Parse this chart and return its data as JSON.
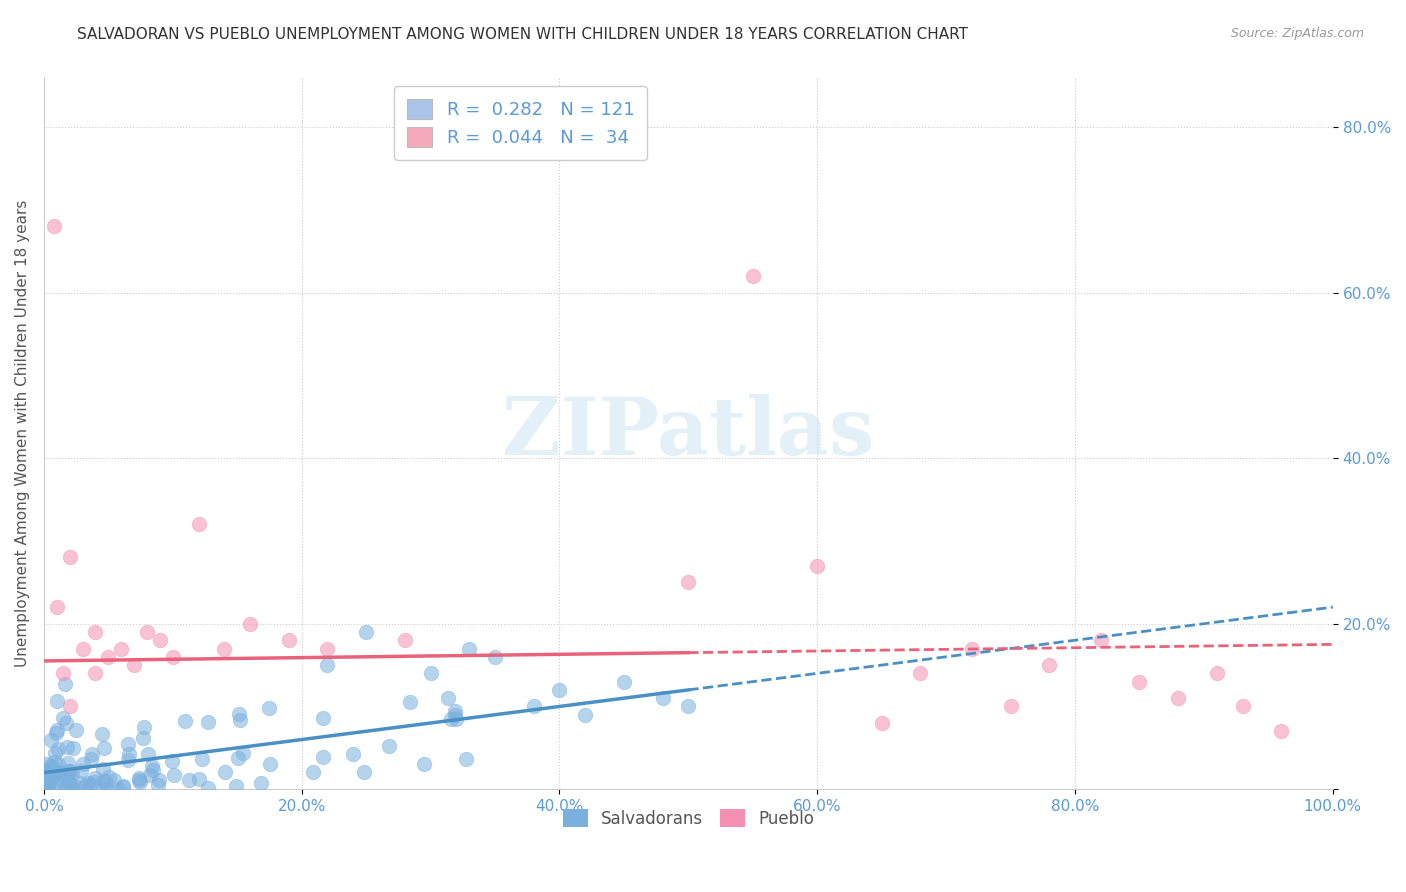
{
  "title": "SALVADORAN VS PUEBLO UNEMPLOYMENT AMONG WOMEN WITH CHILDREN UNDER 18 YEARS CORRELATION CHART",
  "source": "Source: ZipAtlas.com",
  "ylabel": "Unemployment Among Women with Children Under 18 years",
  "watermark": "ZIPatlas",
  "legend_entries": [
    {
      "label": "R =  0.282   N = 121",
      "color": "#aac4e8"
    },
    {
      "label": "R =  0.044   N =  34",
      "color": "#f4aab9"
    }
  ],
  "legend_bottom": [
    "Salvadorans",
    "Pueblo"
  ],
  "salvadoran_color": "#7ab0de",
  "pueblo_color": "#f48fb1",
  "trend_salvadoran_color": "#4a90c4",
  "trend_pueblo_color": "#e8637a",
  "xlim": [
    0.0,
    1.0
  ],
  "ylim": [
    0.0,
    0.86
  ],
  "xticks": [
    0.0,
    0.2,
    0.4,
    0.6,
    0.8,
    1.0
  ],
  "yticks": [
    0.0,
    0.2,
    0.4,
    0.6,
    0.8
  ],
  "ytick_labels": [
    "",
    "20.0%",
    "40.0%",
    "60.0%",
    "80.0%"
  ],
  "xtick_labels": [
    "0.0%",
    "20.0%",
    "40.0%",
    "60.0%",
    "80.0%",
    "100.0%"
  ],
  "background_color": "#ffffff",
  "grid_color": "#cccccc",
  "title_color": "#333333",
  "axis_label_color": "#555555",
  "tick_color": "#5b9bd5",
  "sal_trend_start_y": 0.02,
  "sal_trend_end_y": 0.12,
  "pue_trend_start_y": 0.155,
  "pue_trend_end_y": 0.175
}
